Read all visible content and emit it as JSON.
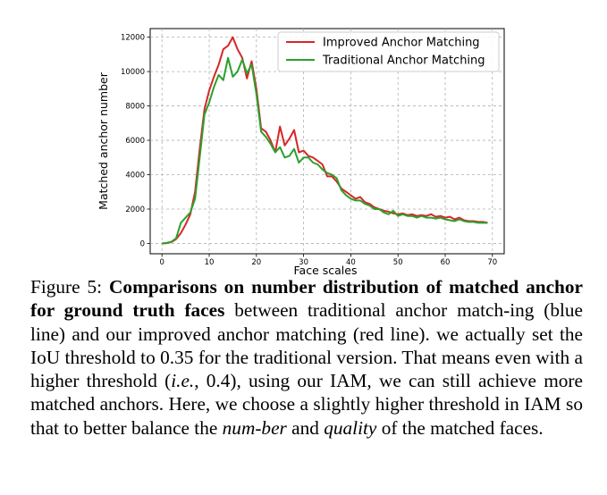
{
  "figure": {
    "label": "Figure 5:",
    "bold_text": "Comparisons on number distribution of matched anchor for ground truth faces",
    "text_1": " between traditional anchor match-ing (blue line) and our improved anchor matching (red line). we actually set the IoU threshold to 0.35 for the traditional version. That means even with a higher threshold (",
    "ie": "i.e.",
    "text_2": ", 0.4), using our IAM, we can still achieve more matched anchors. Here, we choose a slightly higher threshold in IAM so that to better balance the ",
    "number_word": "num-ber",
    "text_3": " and ",
    "quality_word": "quality",
    "text_4": " of the matched faces."
  },
  "chart_data": {
    "type": "line",
    "title": "",
    "xlabel": "Face scales",
    "ylabel": "Matched anchor number",
    "xlim": [
      -2.5,
      72.5
    ],
    "ylim": [
      -600,
      12500
    ],
    "xticks": [
      0,
      10,
      20,
      30,
      40,
      50,
      60,
      70
    ],
    "yticks": [
      0,
      2000,
      4000,
      6000,
      8000,
      10000,
      12000
    ],
    "grid": true,
    "legend_position": "top-right",
    "colors": {
      "improved": "#d62728",
      "traditional": "#2ca02c"
    },
    "x": [
      0,
      1,
      2,
      3,
      4,
      5,
      6,
      7,
      8,
      9,
      10,
      11,
      12,
      13,
      14,
      15,
      16,
      17,
      18,
      19,
      20,
      21,
      22,
      23,
      24,
      25,
      26,
      27,
      28,
      29,
      30,
      31,
      32,
      33,
      34,
      35,
      36,
      37,
      38,
      39,
      40,
      41,
      42,
      43,
      44,
      45,
      46,
      47,
      48,
      49,
      50,
      51,
      52,
      53,
      54,
      55,
      56,
      57,
      58,
      59,
      60,
      61,
      62,
      63,
      64,
      65,
      66,
      67,
      68,
      69
    ],
    "series": [
      {
        "name": "Improved Anchor Matching",
        "values": [
          0,
          20,
          80,
          250,
          600,
          1100,
          1700,
          3000,
          5500,
          7800,
          8900,
          9700,
          10400,
          11300,
          11500,
          12000,
          11300,
          10800,
          9600,
          10600,
          9000,
          6700,
          6500,
          6000,
          5300,
          6800,
          5700,
          6100,
          6600,
          5300,
          5400,
          5100,
          5000,
          4800,
          4600,
          3900,
          3900,
          3600,
          3200,
          3000,
          2800,
          2600,
          2700,
          2400,
          2300,
          2100,
          2000,
          1900,
          1850,
          1750,
          1700,
          1750,
          1650,
          1700,
          1600,
          1650,
          1600,
          1700,
          1550,
          1600,
          1500,
          1550,
          1400,
          1500,
          1350,
          1300,
          1300,
          1250,
          1250,
          1200
        ]
      },
      {
        "name": "Traditional Anchor Matching",
        "values": [
          0,
          30,
          100,
          300,
          1200,
          1500,
          1800,
          2600,
          5000,
          7500,
          8200,
          9100,
          9800,
          9500,
          10800,
          9700,
          10000,
          10700,
          9900,
          10400,
          8700,
          6500,
          6200,
          5800,
          5300,
          5600,
          5000,
          5100,
          5500,
          4700,
          5000,
          5000,
          4700,
          4600,
          4300,
          4100,
          4000,
          3800,
          3100,
          2800,
          2600,
          2500,
          2500,
          2300,
          2200,
          2000,
          2000,
          1800,
          1700,
          1900,
          1600,
          1700,
          1600,
          1600,
          1500,
          1600,
          1500,
          1500,
          1450,
          1500,
          1400,
          1350,
          1300,
          1400,
          1300,
          1250,
          1250,
          1200,
          1200,
          1200
        ]
      }
    ]
  }
}
